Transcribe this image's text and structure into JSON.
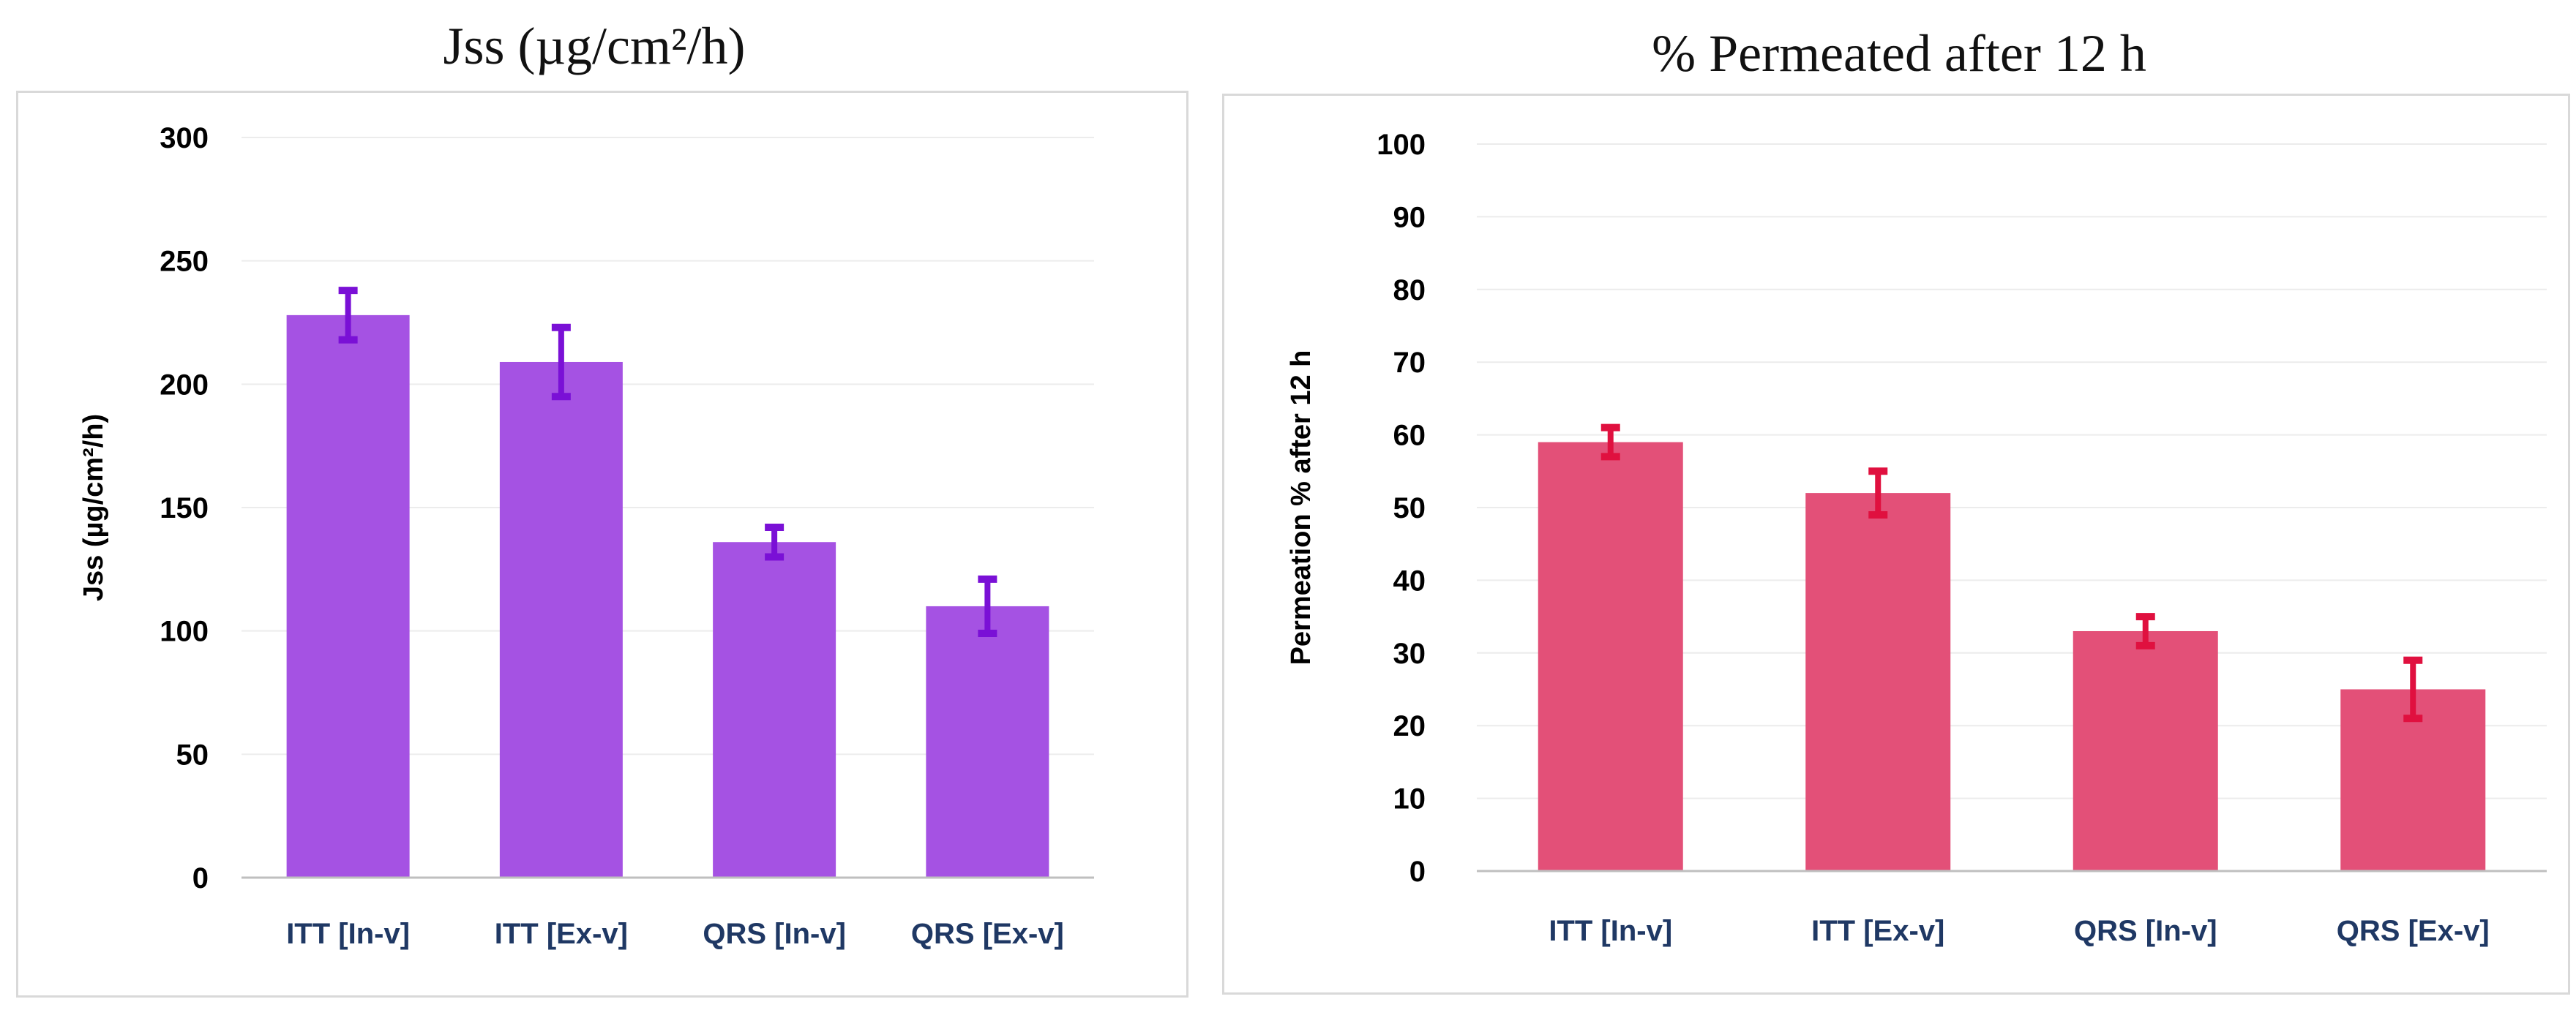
{
  "chart_data": [
    {
      "type": "bar",
      "title": "Jss (µg/cm²/h)",
      "xlabel": "",
      "ylabel": "Jss (µg/cm²/h)",
      "categories": [
        "ITT [In-v]",
        "ITT [Ex-v]",
        "QRS [In-v]",
        "QRS [Ex-v]"
      ],
      "values": [
        228,
        209,
        136,
        110
      ],
      "error": [
        10,
        14,
        6,
        11
      ],
      "ylim": [
        0,
        300
      ],
      "yticks": [
        0,
        50,
        100,
        150,
        200,
        250,
        300
      ],
      "grid": true,
      "legend": "none",
      "bar_color": "#a552e3",
      "error_color": "#7a10d6"
    },
    {
      "type": "bar",
      "title": "% Permeated after 12 h",
      "xlabel": "",
      "ylabel": "Permeation % after 12 h",
      "categories": [
        "ITT [In-v]",
        "ITT [Ex-v]",
        "QRS [In-v]",
        "QRS [Ex-v]"
      ],
      "values": [
        59,
        52,
        33,
        25
      ],
      "error": [
        2,
        3,
        2,
        4
      ],
      "ylim": [
        0,
        100
      ],
      "yticks": [
        0,
        10,
        20,
        30,
        40,
        50,
        60,
        70,
        80,
        90,
        100
      ],
      "grid": true,
      "legend": "none",
      "bar_color": "#e35078",
      "error_color": "#e0103f"
    }
  ]
}
